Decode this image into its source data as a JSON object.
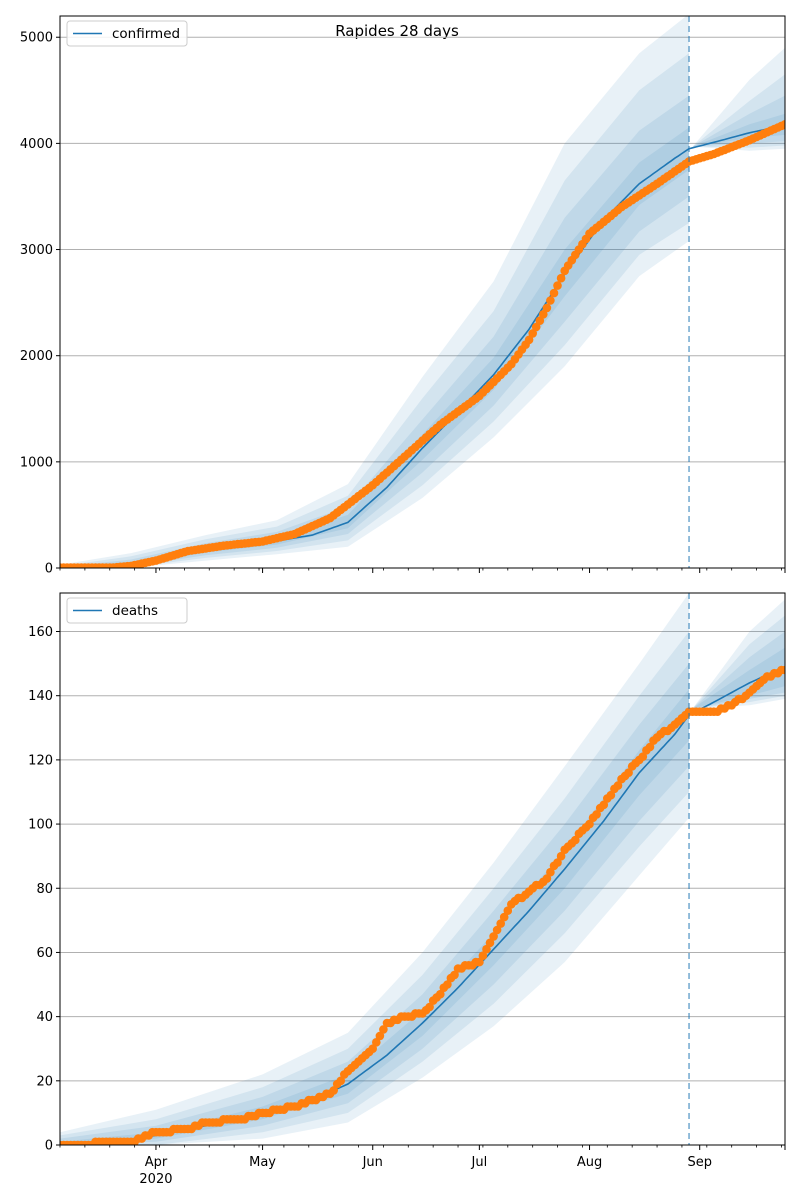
{
  "figure": {
    "title": "Rapides 28 days"
  },
  "x_axis": {
    "month_ticks": [
      {
        "label": "Apr",
        "sub": "2020",
        "date": "2020-04-01"
      },
      {
        "label": "May",
        "sub": "",
        "date": "2020-05-01"
      },
      {
        "label": "Jun",
        "sub": "",
        "date": "2020-06-01"
      },
      {
        "label": "Jul",
        "sub": "",
        "date": "2020-07-01"
      },
      {
        "label": "Aug",
        "sub": "",
        "date": "2020-08-01"
      },
      {
        "label": "Sep",
        "sub": "",
        "date": "2020-09-01"
      }
    ]
  },
  "chart_data": [
    {
      "type": "line",
      "panel": "top",
      "legend": [
        "confirmed"
      ],
      "legend_position": "upper-left",
      "grid": "horizontal",
      "xlim": [
        "2020-03-05",
        "2020-09-25"
      ],
      "ylim": [
        0,
        5200
      ],
      "yticks": [
        0,
        1000,
        2000,
        3000,
        4000,
        5000
      ],
      "forecast_start": "2020-08-29",
      "series": [
        {
          "name": "confirmed",
          "kind": "model",
          "color": "#1f77b4",
          "x": [
            "2020-03-05",
            "2020-03-15",
            "2020-03-25",
            "2020-04-05",
            "2020-04-15",
            "2020-04-25",
            "2020-05-05",
            "2020-05-15",
            "2020-05-25",
            "2020-06-05",
            "2020-06-15",
            "2020-06-25",
            "2020-07-05",
            "2020-07-15",
            "2020-07-25",
            "2020-08-05",
            "2020-08-15",
            "2020-08-25",
            "2020-08-29",
            "2020-09-05",
            "2020-09-15",
            "2020-09-25"
          ],
          "y": [
            0,
            10,
            40,
            110,
            170,
            215,
            255,
            310,
            430,
            760,
            1130,
            1470,
            1820,
            2250,
            2770,
            3280,
            3620,
            3860,
            3950,
            4010,
            4100,
            4170
          ]
        },
        {
          "kind": "observed",
          "color": "#ff7f0e",
          "x": [
            "2020-03-05",
            "2020-03-20",
            "2020-03-25",
            "2020-04-01",
            "2020-04-10",
            "2020-04-20",
            "2020-05-01",
            "2020-05-10",
            "2020-05-20",
            "2020-06-01",
            "2020-06-10",
            "2020-06-20",
            "2020-07-01",
            "2020-07-10",
            "2020-07-15",
            "2020-07-20",
            "2020-07-25",
            "2020-08-01",
            "2020-08-10",
            "2020-08-20",
            "2020-08-29",
            "2020-09-05",
            "2020-09-15",
            "2020-09-25"
          ],
          "y": [
            5,
            5,
            20,
            70,
            160,
            210,
            250,
            320,
            470,
            780,
            1050,
            1350,
            1620,
            1920,
            2150,
            2450,
            2800,
            3150,
            3400,
            3620,
            3830,
            3900,
            4030,
            4180
          ]
        }
      ],
      "uncertainty_bands": [
        {
          "level": 1,
          "x": [
            "2020-03-05",
            "2020-03-25",
            "2020-04-15",
            "2020-05-05",
            "2020-05-25",
            "2020-06-15",
            "2020-07-05",
            "2020-07-25",
            "2020-08-15",
            "2020-08-29",
            "2020-08-30",
            "2020-09-15",
            "2020-09-25"
          ],
          "lower": [
            0,
            25,
            145,
            220,
            375,
            1020,
            1680,
            2560,
            3420,
            3750,
            3970,
            4050,
            4080
          ],
          "upper": [
            5,
            60,
            200,
            295,
            500,
            1260,
            1980,
            3000,
            3820,
            4150,
            3970,
            4180,
            4280
          ]
        },
        {
          "level": 2,
          "x": [
            "2020-03-05",
            "2020-03-25",
            "2020-04-15",
            "2020-05-05",
            "2020-05-25",
            "2020-06-15",
            "2020-07-05",
            "2020-07-25",
            "2020-08-15",
            "2020-08-29",
            "2020-08-30",
            "2020-09-15",
            "2020-09-25"
          ],
          "lower": [
            0,
            15,
            120,
            190,
            320,
            900,
            1530,
            2320,
            3170,
            3500,
            3970,
            4000,
            4020
          ],
          "upper": [
            10,
            80,
            235,
            340,
            580,
            1400,
            2180,
            3300,
            4120,
            4450,
            3970,
            4280,
            4450
          ]
        },
        {
          "level": 3,
          "x": [
            "2020-03-05",
            "2020-03-25",
            "2020-04-15",
            "2020-05-05",
            "2020-05-25",
            "2020-06-15",
            "2020-07-05",
            "2020-07-25",
            "2020-08-15",
            "2020-08-29",
            "2020-08-30",
            "2020-09-15",
            "2020-09-25"
          ],
          "lower": [
            0,
            8,
            95,
            160,
            260,
            780,
            1380,
            2100,
            2950,
            3250,
            3970,
            3960,
            3980
          ],
          "upper": [
            18,
            110,
            270,
            390,
            680,
            1600,
            2420,
            3650,
            4500,
            4850,
            3970,
            4400,
            4650
          ]
        },
        {
          "level": 4,
          "x": [
            "2020-03-05",
            "2020-03-25",
            "2020-04-15",
            "2020-05-05",
            "2020-05-25",
            "2020-06-15",
            "2020-07-05",
            "2020-07-25",
            "2020-08-15",
            "2020-08-29",
            "2020-08-30",
            "2020-09-15",
            "2020-09-25"
          ],
          "lower": [
            0,
            3,
            70,
            130,
            200,
            660,
            1230,
            1900,
            2750,
            3080,
            3970,
            3930,
            3950
          ],
          "upper": [
            30,
            140,
            310,
            450,
            790,
            1800,
            2700,
            4000,
            4850,
            5220,
            3970,
            4600,
            4900
          ]
        }
      ]
    },
    {
      "type": "line",
      "panel": "bottom",
      "legend": [
        "deaths"
      ],
      "legend_position": "upper-left",
      "grid": "horizontal",
      "xlim": [
        "2020-03-05",
        "2020-09-25"
      ],
      "ylim": [
        0,
        172
      ],
      "yticks": [
        0,
        20,
        40,
        60,
        80,
        100,
        120,
        140,
        160
      ],
      "forecast_start": "2020-08-29",
      "series": [
        {
          "name": "deaths",
          "kind": "model",
          "color": "#1f77b4",
          "x": [
            "2020-03-05",
            "2020-03-20",
            "2020-04-01",
            "2020-04-15",
            "2020-05-01",
            "2020-05-15",
            "2020-05-25",
            "2020-06-05",
            "2020-06-15",
            "2020-06-25",
            "2020-07-05",
            "2020-07-15",
            "2020-07-25",
            "2020-08-05",
            "2020-08-15",
            "2020-08-25",
            "2020-08-29",
            "2020-09-05",
            "2020-09-15",
            "2020-09-25"
          ],
          "y": [
            0,
            1,
            3,
            6,
            10,
            14,
            19,
            28,
            38,
            49,
            61,
            73,
            86,
            101,
            116,
            128,
            134,
            138,
            144,
            149
          ]
        },
        {
          "kind": "observed",
          "color": "#ff7f0e",
          "x": [
            "2020-03-05",
            "2020-03-25",
            "2020-04-01",
            "2020-04-10",
            "2020-04-15",
            "2020-04-25",
            "2020-05-01",
            "2020-05-10",
            "2020-05-20",
            "2020-05-25",
            "2020-06-01",
            "2020-06-05",
            "2020-06-10",
            "2020-06-15",
            "2020-06-20",
            "2020-06-25",
            "2020-07-01",
            "2020-07-05",
            "2020-07-10",
            "2020-07-15",
            "2020-07-20",
            "2020-07-25",
            "2020-08-01",
            "2020-08-05",
            "2020-08-10",
            "2020-08-15",
            "2020-08-20",
            "2020-08-25",
            "2020-08-29",
            "2020-09-05",
            "2020-09-10",
            "2020-09-15",
            "2020-09-20",
            "2020-09-25"
          ],
          "y": [
            0,
            1,
            4,
            5,
            7,
            8,
            10,
            12,
            16,
            23,
            30,
            38,
            40,
            41,
            47,
            55,
            57,
            65,
            75,
            79,
            83,
            92,
            100,
            106,
            114,
            120,
            127,
            131,
            135,
            135,
            137,
            141,
            146,
            148
          ]
        }
      ],
      "uncertainty_bands": [
        {
          "level": 1,
          "x": [
            "2020-03-05",
            "2020-04-01",
            "2020-05-01",
            "2020-05-25",
            "2020-06-15",
            "2020-07-05",
            "2020-07-25",
            "2020-08-15",
            "2020-08-29",
            "2020-08-30",
            "2020-09-15",
            "2020-09-25"
          ],
          "lower": [
            0,
            2,
            8,
            16,
            34,
            56,
            80,
            109,
            126,
            136,
            140,
            143
          ],
          "upper": [
            1,
            4,
            12,
            22,
            42,
            66,
            92,
            123,
            142,
            136,
            148,
            155
          ]
        },
        {
          "level": 2,
          "x": [
            "2020-03-05",
            "2020-04-01",
            "2020-05-01",
            "2020-05-25",
            "2020-06-15",
            "2020-07-05",
            "2020-07-25",
            "2020-08-15",
            "2020-08-29",
            "2020-08-30",
            "2020-09-15",
            "2020-09-25"
          ],
          "lower": [
            0,
            1,
            6,
            13,
            30,
            50,
            73,
            101,
            118,
            136,
            139,
            141
          ],
          "upper": [
            2,
            6,
            15,
            26,
            47,
            73,
            100,
            131,
            150,
            136,
            152,
            160
          ]
        },
        {
          "level": 3,
          "x": [
            "2020-03-05",
            "2020-04-01",
            "2020-05-01",
            "2020-05-25",
            "2020-06-15",
            "2020-07-05",
            "2020-07-25",
            "2020-08-15",
            "2020-08-29",
            "2020-08-30",
            "2020-09-15",
            "2020-09-25"
          ],
          "lower": [
            0,
            0,
            4,
            10,
            26,
            44,
            66,
            93,
            110,
            136,
            138,
            140
          ],
          "upper": [
            3,
            8,
            18,
            30,
            53,
            80,
            108,
            140,
            160,
            136,
            156,
            165
          ]
        },
        {
          "level": 4,
          "x": [
            "2020-03-05",
            "2020-04-01",
            "2020-05-01",
            "2020-05-25",
            "2020-06-15",
            "2020-07-05",
            "2020-07-25",
            "2020-08-15",
            "2020-08-29",
            "2020-08-30",
            "2020-09-15",
            "2020-09-25"
          ],
          "lower": [
            0,
            0,
            2,
            7,
            21,
            37,
            57,
            84,
            102,
            136,
            137,
            139
          ],
          "upper": [
            4,
            11,
            22,
            35,
            60,
            88,
            118,
            150,
            172,
            136,
            160,
            170
          ]
        }
      ]
    }
  ]
}
